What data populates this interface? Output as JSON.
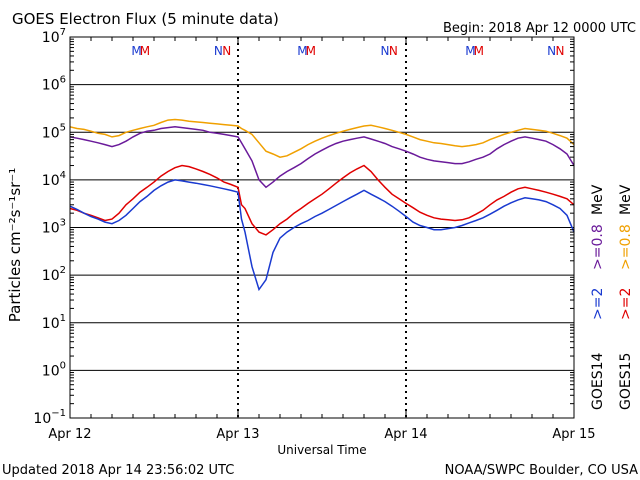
{
  "chart_data": {
    "type": "line",
    "title": "GOES Electron Flux (5 minute data)",
    "begin_label": "Begin: 2018 Apr 12 0000 UTC",
    "xlabel": "Universal Time",
    "ylabel": "Particles cm⁻²s⁻¹sr⁻¹",
    "y_scale": "log",
    "ylim": [
      0.1,
      10000000
    ],
    "xlim": [
      0,
      72
    ],
    "x_ticks": [
      {
        "x": 0,
        "label": "Apr 12"
      },
      {
        "x": 24,
        "label": "Apr 13"
      },
      {
        "x": 48,
        "label": "Apr 14"
      },
      {
        "x": 72,
        "label": "Apr 15"
      }
    ],
    "y_ticks": [
      {
        "exp": 7,
        "base": "10",
        "sup": "7"
      },
      {
        "exp": 6,
        "base": "10",
        "sup": "6"
      },
      {
        "exp": 5,
        "base": "10",
        "sup": "5"
      },
      {
        "exp": 4,
        "base": "10",
        "sup": "4"
      },
      {
        "exp": 3,
        "base": "10",
        "sup": "3"
      },
      {
        "exp": 2,
        "base": "10",
        "sup": "2"
      },
      {
        "exp": 1,
        "base": "10",
        "sup": "1"
      },
      {
        "exp": 0,
        "base": "10",
        "sup": "0"
      },
      {
        "exp": -1,
        "base": "10",
        "sup": "−1"
      }
    ],
    "threshold": {
      "value": 1000,
      "style": "dashed"
    },
    "noon_markers": {
      "M": {
        "label": "M",
        "goes14_x": [
          9.5,
          33.2,
          57.2
        ],
        "goes15_x": [
          10.7,
          34.4,
          58.4
        ]
      },
      "N": {
        "label": "N",
        "goes14_x": [
          21.2,
          45.0,
          68.8
        ],
        "goes15_x": [
          22.4,
          46.2,
          70.0
        ]
      }
    },
    "legend": {
      "placement": "right",
      "goes14": {
        "label": "GOES14",
        "gt2": ">=2",
        "gt08": ">=0.8",
        "unit": "MeV"
      },
      "goes15": {
        "label": "GOES15",
        "gt2": ">=2",
        "gt08": ">=0.8",
        "unit": "MeV"
      }
    },
    "series": [
      {
        "name": ">=0.8 MeV GOES15",
        "color": "#f0a000",
        "x": [
          0,
          1,
          2,
          3,
          4,
          5,
          6,
          7,
          8,
          9,
          10,
          11,
          12,
          13,
          14,
          15,
          16,
          17,
          18,
          19,
          20,
          21,
          22,
          23,
          24,
          24.5,
          25,
          26,
          27,
          28,
          29,
          30,
          31,
          32,
          33,
          34,
          35,
          36,
          37,
          38,
          39,
          40,
          41,
          42,
          43,
          44,
          45,
          46,
          47,
          48,
          49,
          50,
          51,
          52,
          53,
          54,
          55,
          56,
          57,
          58,
          59,
          60,
          61,
          62,
          63,
          64,
          65,
          66,
          67,
          68,
          69,
          70,
          71,
          72
        ],
        "y": [
          130000,
          120000,
          115000,
          105000,
          95000,
          90000,
          80000,
          85000,
          100000,
          110000,
          120000,
          130000,
          140000,
          160000,
          180000,
          185000,
          180000,
          170000,
          165000,
          160000,
          155000,
          150000,
          145000,
          140000,
          135000,
          120000,
          110000,
          90000,
          60000,
          40000,
          35000,
          30000,
          32000,
          38000,
          45000,
          55000,
          65000,
          75000,
          85000,
          95000,
          105000,
          115000,
          125000,
          135000,
          140000,
          130000,
          120000,
          110000,
          100000,
          90000,
          80000,
          70000,
          65000,
          60000,
          58000,
          55000,
          52000,
          50000,
          52000,
          55000,
          60000,
          70000,
          80000,
          90000,
          100000,
          110000,
          120000,
          115000,
          110000,
          105000,
          95000,
          85000,
          75000,
          55000
        ]
      },
      {
        "name": ">=0.8 MeV GOES14",
        "color": "#6a1a9a",
        "x": [
          0,
          1,
          2,
          3,
          4,
          5,
          6,
          7,
          8,
          9,
          10,
          11,
          12,
          13,
          14,
          15,
          16,
          17,
          18,
          19,
          20,
          21,
          22,
          23,
          24,
          24.5,
          25,
          26,
          27,
          28,
          29,
          30,
          31,
          32,
          33,
          34,
          35,
          36,
          37,
          38,
          39,
          40,
          41,
          42,
          43,
          44,
          45,
          46,
          47,
          48,
          49,
          50,
          51,
          52,
          53,
          54,
          55,
          56,
          57,
          58,
          59,
          60,
          61,
          62,
          63,
          64,
          65,
          66,
          67,
          68,
          69,
          70,
          71,
          72
        ],
        "y": [
          80000,
          75000,
          70000,
          65000,
          60000,
          55000,
          50000,
          55000,
          65000,
          80000,
          95000,
          105000,
          110000,
          120000,
          125000,
          130000,
          125000,
          120000,
          115000,
          110000,
          100000,
          95000,
          90000,
          85000,
          80000,
          60000,
          45000,
          25000,
          10000,
          7000,
          9000,
          12000,
          15000,
          18000,
          22000,
          28000,
          35000,
          42000,
          50000,
          58000,
          65000,
          70000,
          75000,
          80000,
          72000,
          65000,
          58000,
          50000,
          45000,
          40000,
          35000,
          30000,
          27000,
          25000,
          24000,
          23000,
          22000,
          22000,
          24000,
          27000,
          30000,
          35000,
          45000,
          55000,
          65000,
          75000,
          80000,
          75000,
          70000,
          65000,
          55000,
          45000,
          35000,
          20000
        ]
      },
      {
        "name": ">=2 MeV GOES15",
        "color": "#e00000",
        "x": [
          0,
          1,
          2,
          3,
          4,
          5,
          6,
          7,
          8,
          9,
          10,
          11,
          12,
          13,
          14,
          15,
          16,
          17,
          18,
          19,
          20,
          21,
          22,
          23,
          24,
          24.5,
          25,
          26,
          27,
          28,
          29,
          30,
          31,
          32,
          33,
          34,
          35,
          36,
          37,
          38,
          39,
          40,
          41,
          42,
          43,
          44,
          45,
          46,
          47,
          48,
          49,
          50,
          51,
          52,
          53,
          54,
          55,
          56,
          57,
          58,
          59,
          60,
          61,
          62,
          63,
          64,
          65,
          66,
          67,
          68,
          69,
          70,
          71,
          72
        ],
        "y": [
          2500,
          2300,
          2000,
          1800,
          1600,
          1400,
          1500,
          2000,
          3000,
          4000,
          5500,
          7000,
          9000,
          12000,
          15000,
          18000,
          20000,
          19000,
          17000,
          15000,
          13000,
          11000,
          9000,
          8000,
          7000,
          3000,
          2500,
          1200,
          800,
          700,
          900,
          1200,
          1500,
          2000,
          2500,
          3200,
          4000,
          5000,
          6500,
          8500,
          11000,
          14000,
          17000,
          20000,
          15000,
          10000,
          7000,
          5000,
          4000,
          3200,
          2600,
          2100,
          1800,
          1600,
          1500,
          1450,
          1400,
          1450,
          1600,
          1900,
          2300,
          3000,
          3800,
          4500,
          5500,
          6500,
          7000,
          6500,
          6000,
          5500,
          5000,
          4500,
          4000,
          3000
        ]
      },
      {
        "name": ">=2 MeV GOES14",
        "color": "#1a3ad0",
        "x": [
          0,
          1,
          2,
          3,
          4,
          5,
          6,
          7,
          8,
          9,
          10,
          11,
          12,
          13,
          14,
          15,
          16,
          17,
          18,
          19,
          20,
          21,
          22,
          23,
          24,
          24.5,
          25,
          26,
          27,
          28,
          29,
          30,
          31,
          32,
          33,
          34,
          35,
          36,
          37,
          38,
          39,
          40,
          41,
          42,
          43,
          44,
          45,
          46,
          47,
          48,
          49,
          50,
          51,
          52,
          53,
          54,
          55,
          56,
          57,
          58,
          59,
          60,
          61,
          62,
          63,
          64,
          65,
          66,
          67,
          68,
          69,
          70,
          71,
          72
        ],
        "y": [
          2800,
          2400,
          2000,
          1700,
          1500,
          1300,
          1200,
          1400,
          1800,
          2500,
          3500,
          4500,
          6000,
          7500,
          9000,
          10000,
          9500,
          9000,
          8500,
          8000,
          7500,
          7000,
          6500,
          6000,
          5500,
          1500,
          800,
          150,
          50,
          80,
          300,
          600,
          800,
          1000,
          1200,
          1400,
          1700,
          2000,
          2400,
          2900,
          3500,
          4200,
          5000,
          6000,
          5000,
          4200,
          3500,
          2800,
          2200,
          1700,
          1300,
          1100,
          1000,
          900,
          900,
          950,
          1000,
          1100,
          1250,
          1400,
          1600,
          1900,
          2300,
          2800,
          3300,
          3800,
          4200,
          4000,
          3800,
          3500,
          3000,
          2500,
          1800,
          800
        ]
      }
    ]
  },
  "footer": {
    "updated": "Updated 2018 Apr 14 23:56:02 UTC",
    "credit": "NOAA/SWPC Boulder, CO USA"
  },
  "colors": {
    "goes14": "#1a3ad0",
    "goes15": "#e00000",
    "goes14_08": "#6a1a9a",
    "goes15_08": "#f0a000"
  }
}
